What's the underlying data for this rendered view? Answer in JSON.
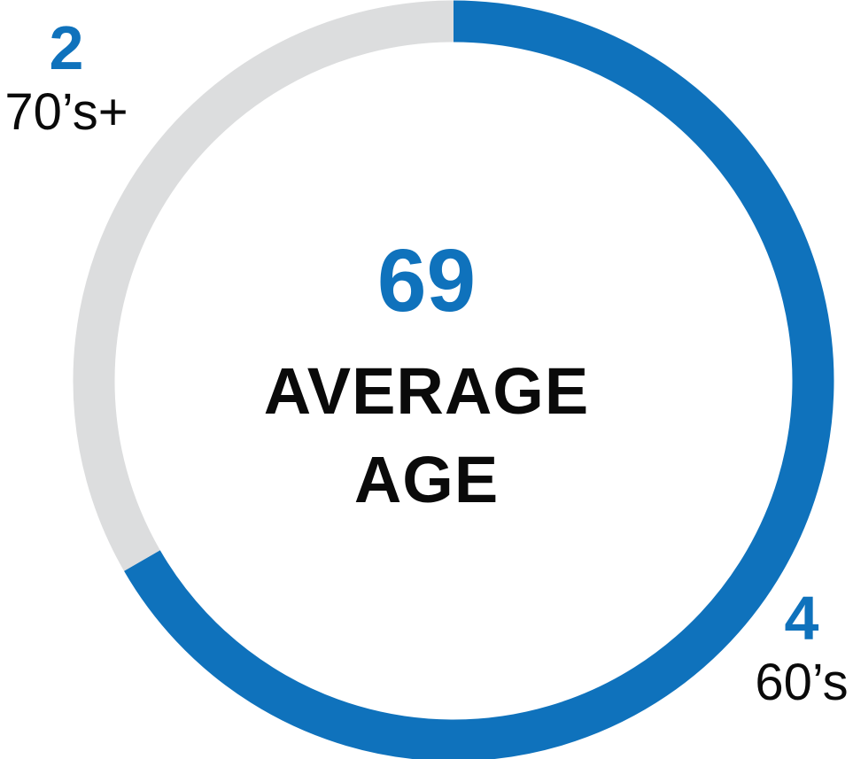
{
  "chart_data": {
    "type": "pie",
    "subtype": "donut",
    "title": "",
    "direction": "clockwise",
    "start_angle_deg": 0,
    "total": 6,
    "center": {
      "value": "69",
      "label_line1": "AVERAGE",
      "label_line2": "AGE"
    },
    "segments": [
      {
        "label": "60’s",
        "value": 4,
        "color": "#0F72BC"
      },
      {
        "label": "70’s+",
        "value": 2,
        "color": "#DCDDDE"
      }
    ],
    "legend": "none"
  },
  "colors": {
    "accent_blue": "#0F72BC",
    "track_gray": "#DCDDDE",
    "text_black": "#0a0a0a",
    "background": "#ffffff"
  }
}
